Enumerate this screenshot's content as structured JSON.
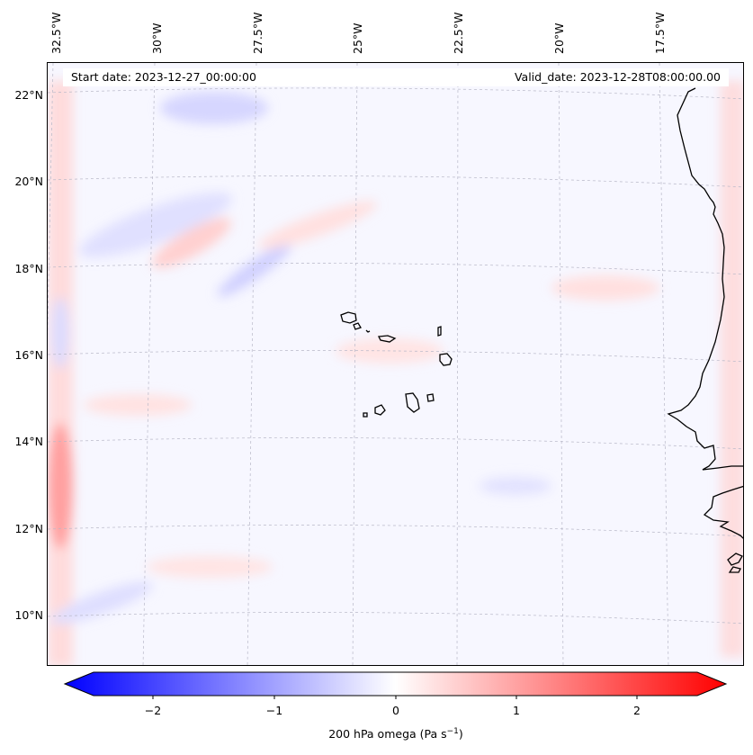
{
  "header": {
    "start_date": "Start date: 2023-12-27_00:00:00",
    "valid_date": "Valid_date: 2023-12-28T08:00:00.00"
  },
  "map": {
    "longitude_labels": [
      "32.5°W",
      "30°W",
      "27.5°W",
      "25°W",
      "22.5°W",
      "20°W",
      "17.5°W"
    ],
    "latitude_labels": [
      "22°N",
      "20°N",
      "18°N",
      "16°N",
      "14°N",
      "12°N",
      "10°N"
    ],
    "field": "200 hPa vertical velocity (omega)",
    "colors": {
      "negative": "#0000ff",
      "neutral": "#ffffff",
      "positive": "#ff0000",
      "coast": "#000000",
      "grid": "#b8b8c8"
    }
  },
  "colorbar": {
    "ticks": [
      "−2",
      "−1",
      "0",
      "1",
      "2"
    ],
    "label_prefix": "200 hPa omega (Pa s",
    "label_exp": "−1",
    "label_suffix": ")",
    "range": [
      -2.7,
      2.7
    ]
  }
}
